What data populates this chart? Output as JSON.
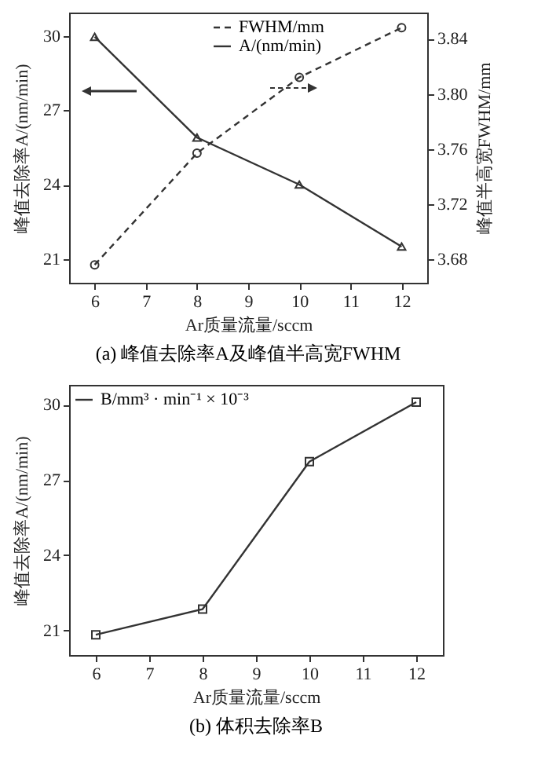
{
  "chart_data": [
    {
      "type": "line",
      "title": "(a) 峰值去除率A及峰值半高宽FWHM",
      "xlabel": "Ar质量流量/sccm",
      "ylabel": "峰值去除率A/(nm/min)",
      "y2label": "峰值半高宽FWHM/mm",
      "x": [
        6,
        8,
        10,
        12
      ],
      "xlim": [
        5.5,
        12.5
      ],
      "xticks": [
        6,
        7,
        8,
        9,
        10,
        11,
        12
      ],
      "ylim": [
        20.04,
        30.94
      ],
      "yticks": [
        21,
        24,
        27,
        30
      ],
      "y2lim": [
        3.663,
        3.859
      ],
      "y2ticks": [
        3.68,
        3.72,
        3.76,
        {
          "value": 3.8,
          "label": "3.80"
        },
        3.84
      ],
      "legend": "top right",
      "series": [
        {
          "name": "FWHM/mm",
          "color": "#333333",
          "axis": "y2",
          "marker": "circle",
          "line_style": "dashed",
          "values": [
            3.676,
            3.757,
            3.812,
            3.848
          ]
        },
        {
          "name": "A/(nm/min)",
          "color": "#333333",
          "axis": "y",
          "marker": "triangle",
          "line_style": "solid",
          "values": [
            29.96,
            25.9,
            24.0,
            21.5
          ]
        }
      ]
    },
    {
      "type": "line",
      "title": "(b) 体积去除率B",
      "xlabel": "Ar质量流量/sccm",
      "ylabel": "峰值去除率A/(nm/min)",
      "x": [
        6,
        8,
        10,
        12
      ],
      "xlim": [
        5.5,
        12.5
      ],
      "xticks": [
        6,
        7,
        8,
        9,
        10,
        11,
        12
      ],
      "ylim": [
        20.02,
        30.79
      ],
      "yticks": [
        21,
        24,
        27,
        30
      ],
      "legend": "top left",
      "series": [
        {
          "name": "B/mm³ · min⁻¹ × 10⁻³",
          "color": "#333333",
          "marker": "square",
          "line_style": "solid",
          "values": [
            20.83,
            21.85,
            27.73,
            30.1
          ]
        }
      ]
    }
  ]
}
